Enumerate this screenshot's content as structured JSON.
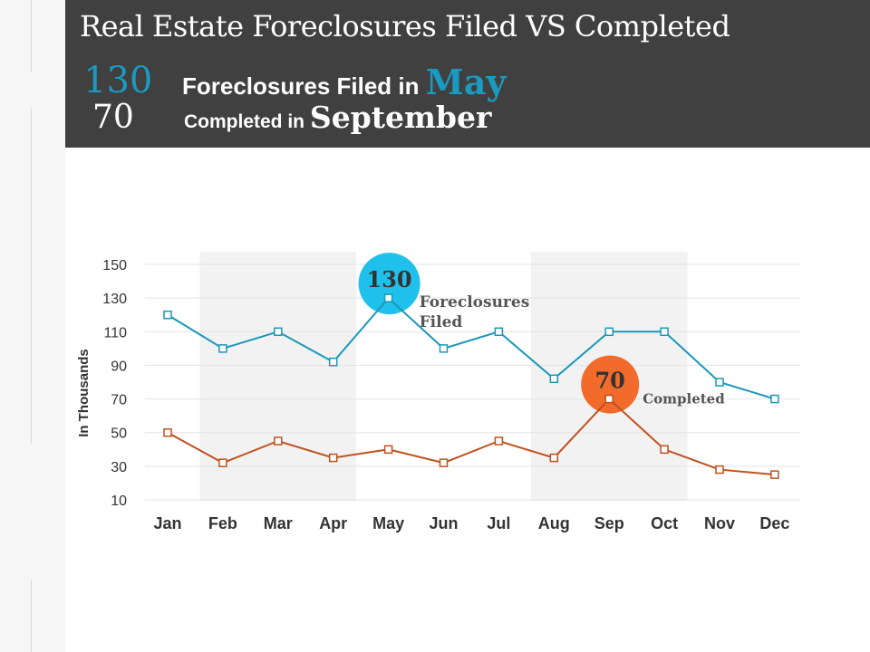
{
  "header": {
    "title": "Real Estate Foreclosures Filed VS Completed",
    "filed_value": "130",
    "filed_text": "Foreclosures Filed in",
    "filed_month": "May",
    "completed_value": "70",
    "completed_text": "Completed in",
    "completed_month": "September"
  },
  "colors": {
    "filed": "#1a97b9",
    "completed": "#c0501e",
    "filed_bubble": "#1fc0eb",
    "completed_bubble": "#f26b2b",
    "shade": "#f2f2f2"
  },
  "chart_data": {
    "type": "line",
    "title": "",
    "xlabel": "",
    "ylabel": "In Thousands",
    "categories": [
      "Jan",
      "Feb",
      "Mar",
      "Apr",
      "May",
      "Jun",
      "Jul",
      "Aug",
      "Sep",
      "Oct",
      "Nov",
      "Dec"
    ],
    "series": [
      {
        "name": "Foreclosures Filed",
        "values": [
          120,
          100,
          110,
          92,
          130,
          100,
          110,
          82,
          110,
          110,
          80,
          70
        ]
      },
      {
        "name": "Completed",
        "values": [
          50,
          32,
          45,
          35,
          40,
          32,
          45,
          35,
          70,
          40,
          28,
          25
        ]
      }
    ],
    "ylim": [
      10,
      150
    ],
    "yticks": [
      10,
      30,
      50,
      70,
      90,
      110,
      130,
      150
    ],
    "grid": true,
    "shaded_ranges": [
      [
        "Feb",
        "Apr"
      ],
      [
        "Aug",
        "Oct"
      ]
    ],
    "annotations": [
      {
        "series": 0,
        "category": "May",
        "bubble": "130",
        "label_lines": [
          "Foreclosures",
          "Filed"
        ]
      },
      {
        "series": 1,
        "category": "Sep",
        "bubble": "70",
        "label_lines": [
          "Completed"
        ]
      }
    ]
  }
}
